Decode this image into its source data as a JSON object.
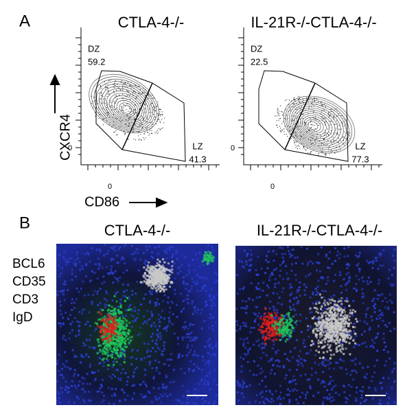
{
  "panel_a": {
    "label": "A",
    "y_axis_label": "CXCR4",
    "x_axis_label": "CD86",
    "plots": [
      {
        "title": "CTLA-4-/-",
        "x_tick": "0",
        "y_tick": "0",
        "gates": [
          {
            "name": "DZ",
            "value": "59.2"
          },
          {
            "name": "LZ",
            "value": "41.3"
          }
        ]
      },
      {
        "title": "IL-21R-/-CTLA-4-/-",
        "x_tick": "0",
        "y_tick": "0",
        "gates": [
          {
            "name": "DZ",
            "value": "22.5"
          },
          {
            "name": "LZ",
            "value": "77.3"
          }
        ]
      }
    ]
  },
  "panel_b": {
    "label": "B",
    "stains": [
      {
        "name": "BCL6",
        "color": "#1fc45a"
      },
      {
        "name": "CD35",
        "color": "#e0201c"
      },
      {
        "name": "CD3",
        "color": "#c8c8c8"
      },
      {
        "name": "IgD",
        "color": "#2a3fd0"
      }
    ],
    "images": [
      {
        "title": "CTLA-4-/-"
      },
      {
        "title": "IL-21R-/-CTLA-4-/-"
      }
    ]
  }
}
